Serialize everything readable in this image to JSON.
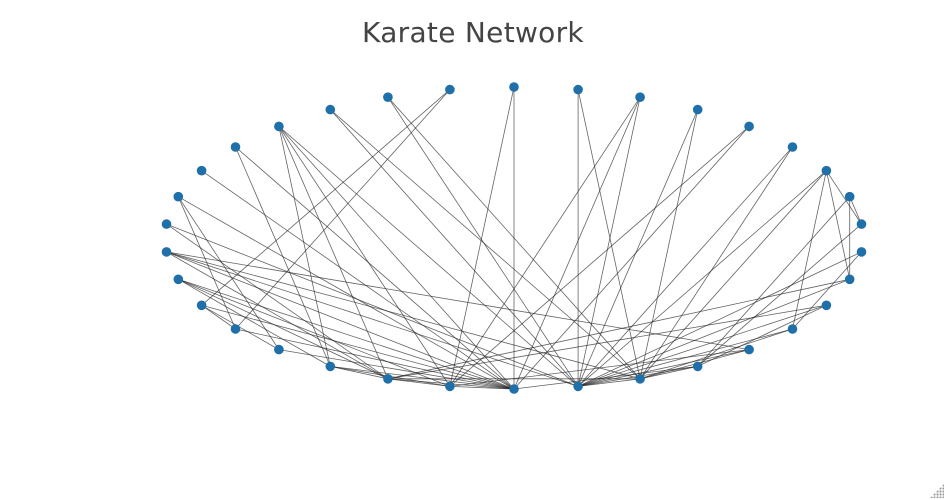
{
  "title": "Karate Network",
  "style": {
    "node_color": "#1f6fa8",
    "edge_color": "#222222"
  },
  "graph": {
    "layout": "circular",
    "node_count": 34,
    "edges": [
      [
        0,
        1
      ],
      [
        0,
        2
      ],
      [
        0,
        3
      ],
      [
        0,
        4
      ],
      [
        0,
        5
      ],
      [
        0,
        6
      ],
      [
        0,
        7
      ],
      [
        0,
        8
      ],
      [
        0,
        10
      ],
      [
        0,
        11
      ],
      [
        0,
        12
      ],
      [
        0,
        13
      ],
      [
        0,
        17
      ],
      [
        0,
        19
      ],
      [
        0,
        21
      ],
      [
        0,
        31
      ],
      [
        1,
        2
      ],
      [
        1,
        3
      ],
      [
        1,
        7
      ],
      [
        1,
        13
      ],
      [
        1,
        17
      ],
      [
        1,
        19
      ],
      [
        1,
        21
      ],
      [
        1,
        30
      ],
      [
        2,
        3
      ],
      [
        2,
        7
      ],
      [
        2,
        8
      ],
      [
        2,
        9
      ],
      [
        2,
        13
      ],
      [
        2,
        27
      ],
      [
        2,
        28
      ],
      [
        2,
        32
      ],
      [
        3,
        7
      ],
      [
        3,
        12
      ],
      [
        3,
        13
      ],
      [
        4,
        6
      ],
      [
        4,
        10
      ],
      [
        5,
        6
      ],
      [
        5,
        10
      ],
      [
        5,
        16
      ],
      [
        6,
        16
      ],
      [
        8,
        30
      ],
      [
        8,
        32
      ],
      [
        8,
        33
      ],
      [
        9,
        33
      ],
      [
        13,
        33
      ],
      [
        14,
        32
      ],
      [
        14,
        33
      ],
      [
        15,
        32
      ],
      [
        15,
        33
      ],
      [
        18,
        32
      ],
      [
        18,
        33
      ],
      [
        19,
        33
      ],
      [
        20,
        32
      ],
      [
        20,
        33
      ],
      [
        22,
        32
      ],
      [
        22,
        33
      ],
      [
        23,
        25
      ],
      [
        23,
        27
      ],
      [
        23,
        29
      ],
      [
        23,
        32
      ],
      [
        23,
        33
      ],
      [
        24,
        25
      ],
      [
        24,
        27
      ],
      [
        24,
        31
      ],
      [
        25,
        31
      ],
      [
        26,
        29
      ],
      [
        26,
        33
      ],
      [
        27,
        33
      ],
      [
        28,
        31
      ],
      [
        28,
        33
      ],
      [
        29,
        32
      ],
      [
        29,
        33
      ],
      [
        30,
        32
      ],
      [
        30,
        33
      ],
      [
        31,
        32
      ],
      [
        31,
        33
      ],
      [
        32,
        33
      ]
    ]
  }
}
